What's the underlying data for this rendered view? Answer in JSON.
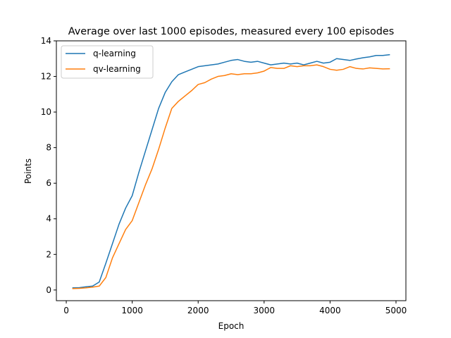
{
  "chart_data": {
    "type": "line",
    "title": "Average over last 1000 episodes, measured every 100 episodes",
    "xlabel": "Epoch",
    "ylabel": "Points",
    "xlim": [
      -150,
      5150
    ],
    "ylim": [
      -0.6,
      14
    ],
    "xticks": [
      0,
      1000,
      2000,
      3000,
      4000,
      5000
    ],
    "yticks": [
      0,
      2,
      4,
      6,
      8,
      10,
      12,
      14
    ],
    "grid": false,
    "legend": "top-left",
    "x": [
      100,
      200,
      300,
      400,
      500,
      600,
      700,
      800,
      900,
      1000,
      1100,
      1200,
      1300,
      1400,
      1500,
      1600,
      1700,
      1800,
      1900,
      2000,
      2100,
      2200,
      2300,
      2400,
      2500,
      2600,
      2700,
      2800,
      2900,
      3000,
      3100,
      3200,
      3300,
      3400,
      3500,
      3600,
      3700,
      3800,
      3900,
      4000,
      4100,
      4200,
      4300,
      4400,
      4500,
      4600,
      4700,
      4800,
      4900
    ],
    "series": [
      {
        "name": "q-learning",
        "color": "#1f77b4",
        "values": [
          0.12,
          0.13,
          0.18,
          0.22,
          0.45,
          1.5,
          2.6,
          3.7,
          4.6,
          5.3,
          6.6,
          7.8,
          9.0,
          10.2,
          11.1,
          11.7,
          12.1,
          12.25,
          12.4,
          12.55,
          12.6,
          12.65,
          12.7,
          12.8,
          12.9,
          12.95,
          12.85,
          12.8,
          12.85,
          12.75,
          12.65,
          12.7,
          12.75,
          12.7,
          12.75,
          12.65,
          12.75,
          12.85,
          12.75,
          12.8,
          13.0,
          12.95,
          12.9,
          12.98,
          13.05,
          13.1,
          13.18,
          13.18,
          13.22
        ]
      },
      {
        "name": "qv-learning",
        "color": "#ff7f0e",
        "values": [
          0.08,
          0.09,
          0.12,
          0.16,
          0.22,
          0.7,
          1.8,
          2.6,
          3.4,
          3.9,
          4.9,
          5.9,
          6.8,
          7.9,
          9.1,
          10.2,
          10.6,
          10.9,
          11.2,
          11.55,
          11.65,
          11.85,
          12.0,
          12.05,
          12.15,
          12.1,
          12.15,
          12.15,
          12.2,
          12.3,
          12.5,
          12.45,
          12.45,
          12.6,
          12.55,
          12.6,
          12.6,
          12.65,
          12.55,
          12.4,
          12.35,
          12.4,
          12.55,
          12.45,
          12.42,
          12.48,
          12.45,
          12.42,
          12.43
        ]
      }
    ]
  }
}
